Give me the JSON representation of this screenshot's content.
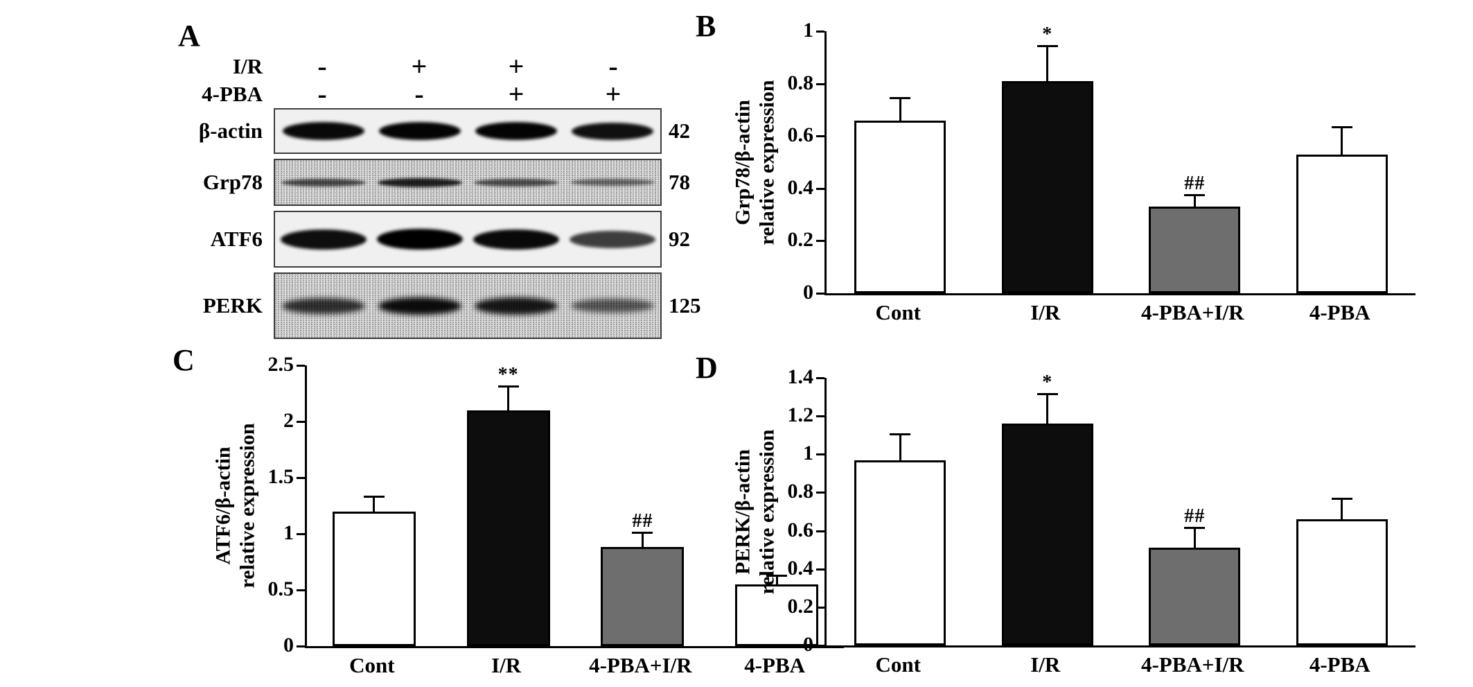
{
  "panel_a": {
    "label": "A",
    "treatment_rows": [
      {
        "label": "I/R",
        "signs": [
          "-",
          "+",
          "+",
          "-"
        ]
      },
      {
        "label": "4-PBA",
        "signs": [
          "-",
          "-",
          "+",
          "+"
        ]
      }
    ],
    "blots": [
      {
        "protein": "β-actin",
        "mw": "42",
        "noisy": false,
        "band_intensities": [
          0.95,
          0.97,
          0.97,
          0.9
        ]
      },
      {
        "protein": "Grp78",
        "mw": "78",
        "noisy": true,
        "band_intensities": [
          0.55,
          0.8,
          0.5,
          0.35
        ]
      },
      {
        "protein": "ATF6",
        "mw": "92",
        "noisy": false,
        "band_intensities": [
          0.92,
          1.0,
          0.95,
          0.65
        ]
      },
      {
        "protein": "PERK",
        "mw": "125",
        "noisy": true,
        "band_intensities": [
          0.7,
          0.92,
          0.85,
          0.45
        ]
      }
    ]
  },
  "chart_data": [
    {
      "panel": "B",
      "type": "bar",
      "categories": [
        "Cont",
        "I/R",
        "4-PBA+I/R",
        "4-PBA"
      ],
      "values": [
        0.66,
        0.81,
        0.33,
        0.53
      ],
      "errors": [
        0.08,
        0.13,
        0.04,
        0.1
      ],
      "annotations": [
        "",
        "*",
        "##",
        ""
      ],
      "bar_colors": [
        "#ffffff",
        "#0d0d0d",
        "#6e6e6e",
        "#ffffff"
      ],
      "ylabel": [
        "Grp78/β-actin",
        "relative expression"
      ],
      "xlabel": "",
      "ylim": [
        0,
        1
      ],
      "ytick_values": [
        0,
        0.2,
        0.4,
        0.6,
        0.8,
        1
      ],
      "ytick_labels": [
        "0",
        "0.2",
        "0.4",
        "0.6",
        "0.8",
        "1"
      ],
      "grid": false,
      "legend": false
    },
    {
      "panel": "C",
      "type": "bar",
      "categories": [
        "Cont",
        "I/R",
        "4-PBA+I/R",
        "4-PBA"
      ],
      "values": [
        1.2,
        2.1,
        0.88,
        0.55
      ],
      "errors": [
        0.12,
        0.2,
        0.12,
        0.07
      ],
      "annotations": [
        "",
        "**",
        "##",
        ""
      ],
      "bar_colors": [
        "#ffffff",
        "#0d0d0d",
        "#6e6e6e",
        "#ffffff"
      ],
      "ylabel": [
        "ATF6/β-actin",
        "relative expression"
      ],
      "xlabel": "",
      "ylim": [
        0,
        2.5
      ],
      "ytick_values": [
        0,
        0.5,
        1,
        1.5,
        2,
        2.5
      ],
      "ytick_labels": [
        "0",
        "0.5",
        "1",
        "1.5",
        "2",
        "2.5"
      ],
      "grid": false,
      "legend": false
    },
    {
      "panel": "D",
      "type": "bar",
      "categories": [
        "Cont",
        "I/R",
        "4-PBA+I/R",
        "4-PBA"
      ],
      "values": [
        0.97,
        1.16,
        0.51,
        0.66
      ],
      "errors": [
        0.13,
        0.15,
        0.1,
        0.1
      ],
      "annotations": [
        "",
        "*",
        "##",
        ""
      ],
      "bar_colors": [
        "#ffffff",
        "#0d0d0d",
        "#6e6e6e",
        "#ffffff"
      ],
      "ylabel": [
        "PERK/β-actin",
        "relative expression"
      ],
      "xlabel": "",
      "ylim": [
        0,
        1.4
      ],
      "ytick_values": [
        0,
        0.2,
        0.4,
        0.6,
        0.8,
        1,
        1.2,
        1.4
      ],
      "ytick_labels": [
        "0",
        "0.2",
        "0.4",
        "0.6",
        "0.8",
        "1",
        "1.2",
        "1.4"
      ],
      "grid": false,
      "legend": false
    }
  ]
}
